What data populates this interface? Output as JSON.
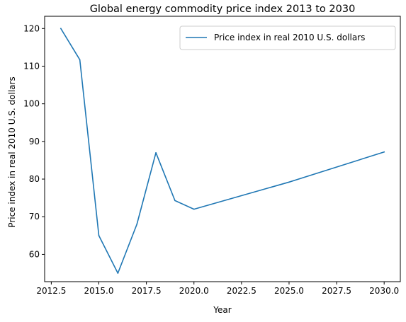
{
  "chart_data": {
    "type": "line",
    "title": "Global energy commodity price index 2013 to 2030",
    "xlabel": "Year",
    "ylabel": "Price index in real 2010 U.S. dollars",
    "xlim": [
      2012.15,
      2030.85
    ],
    "ylim": [
      52.75,
      123.25
    ],
    "x_ticks": [
      2012.5,
      2015.0,
      2017.5,
      2020.0,
      2022.5,
      2025.0,
      2027.5,
      2030.0
    ],
    "x_tick_labels": [
      "2012.5",
      "2015.0",
      "2017.5",
      "2020.0",
      "2022.5",
      "2025.0",
      "2027.5",
      "2030.0"
    ],
    "y_ticks": [
      60,
      70,
      80,
      90,
      100,
      110,
      120
    ],
    "y_tick_labels": [
      "60",
      "70",
      "80",
      "90",
      "100",
      "110",
      "120"
    ],
    "grid": false,
    "legend_position": "top-right",
    "series": [
      {
        "name": "Price index in real 2010 U.S. dollars",
        "color": "#1f77b4",
        "x": [
          2013,
          2014,
          2015,
          2016,
          2017,
          2018,
          2019,
          2020,
          2025,
          2030
        ],
        "y": [
          120.0,
          111.7,
          65.0,
          55.0,
          68.0,
          87.0,
          74.3,
          72.0,
          79.2,
          87.2
        ]
      }
    ]
  }
}
